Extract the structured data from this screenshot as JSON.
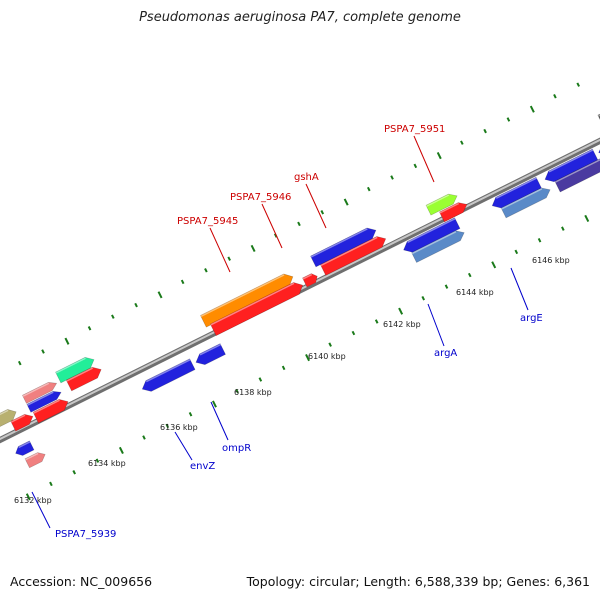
{
  "title": "Pseudomonas aeruginosa PA7, complete genome",
  "footer": {
    "accession": "Accession: NC_009656",
    "summary": "Topology: circular; Length: 6,588,339 bp; Genes: 6,361"
  },
  "colors": {
    "label_top": "#cc0000",
    "label_bottom": "#0000cc",
    "tick": "#1a7a1a",
    "backbone": "#9a9a9a"
  },
  "ticks": [
    "6132 kbp",
    "6134 kbp",
    "6136 kbp",
    "6138 kbp",
    "6140 kbp",
    "6142 kbp",
    "6144 kbp",
    "6146 kbp"
  ],
  "gene_labels": [
    {
      "text": "PSPA7_5945",
      "strand": "top"
    },
    {
      "text": "PSPA7_5946",
      "strand": "top"
    },
    {
      "text": "gshA",
      "strand": "top"
    },
    {
      "text": "PSPA7_5951",
      "strand": "top"
    },
    {
      "text": "PSPA7_5939",
      "strand": "bottom"
    },
    {
      "text": "envZ",
      "strand": "bottom"
    },
    {
      "text": "ompR",
      "strand": "bottom"
    },
    {
      "text": "argA",
      "strand": "bottom"
    },
    {
      "text": "argE",
      "strand": "bottom"
    }
  ]
}
